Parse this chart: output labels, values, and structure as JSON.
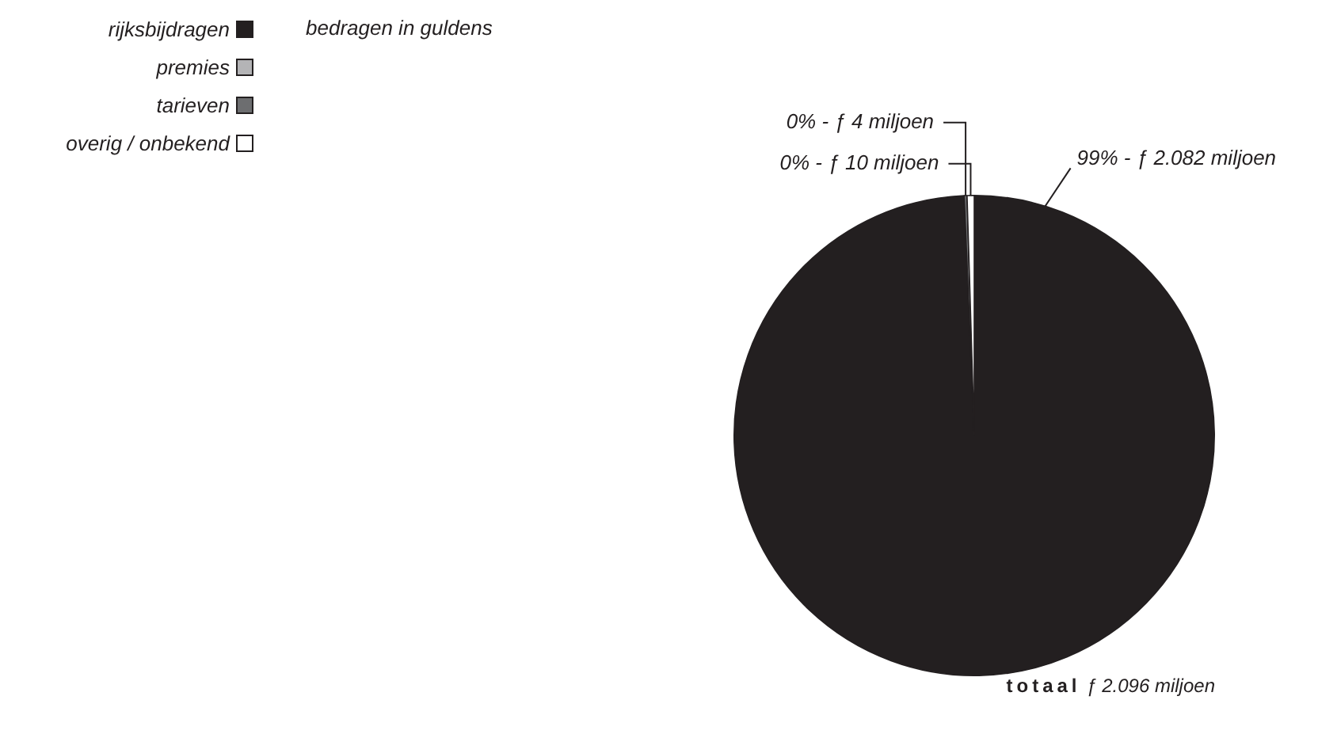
{
  "chart_data": {
    "type": "pie",
    "subtitle": "bedragen in guldens",
    "categories": [
      "rijksbijdragen",
      "premies",
      "tarieven",
      "overig / onbekend"
    ],
    "values": [
      2082,
      0,
      4,
      10
    ],
    "colors": [
      "#231f20",
      "#b4b4b6",
      "#6d6e70",
      "#ffffff"
    ],
    "value_labels": [
      "99% - ƒ 2.082 miljoen",
      null,
      "0% - ƒ 4 miljoen",
      "0% - ƒ 10 miljoen"
    ],
    "annotations": [
      "totaal ƒ 2.096 miljoen"
    ],
    "legend": "top left"
  }
}
